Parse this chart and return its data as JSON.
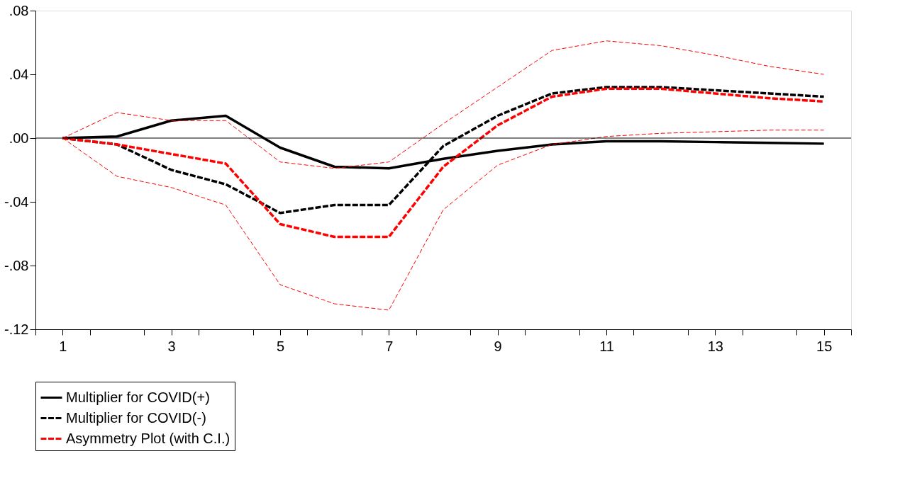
{
  "chart_data": {
    "type": "line",
    "x": [
      1,
      2,
      3,
      4,
      5,
      6,
      7,
      8,
      9,
      10,
      11,
      12,
      13,
      14,
      15
    ],
    "series": [
      {
        "name": "Multiplier for COVID(+)",
        "color": "#000000",
        "line_style": "solid",
        "values": [
          0,
          0.001,
          0.011,
          0.014,
          -0.006,
          -0.018,
          -0.019,
          -0.013,
          -0.008,
          -0.004,
          -0.002,
          -0.002,
          -0.0025,
          -0.003,
          -0.0035
        ]
      },
      {
        "name": "Multiplier for COVID(-)",
        "color": "#000000",
        "line_style": "dashed",
        "values": [
          0,
          -0.004,
          -0.02,
          -0.029,
          -0.047,
          -0.042,
          -0.042,
          -0.005,
          0.014,
          0.028,
          0.032,
          0.032,
          0.03,
          0.028,
          0.026
        ]
      },
      {
        "name": "Asymmetry Plot (with C.I.)",
        "color": "#ff0000",
        "line_style": "dashed",
        "values": [
          0,
          -0.004,
          -0.01,
          -0.016,
          -0.054,
          -0.062,
          -0.062,
          -0.018,
          0.008,
          0.026,
          0.031,
          0.031,
          0.028,
          0.025,
          0.023
        ]
      },
      {
        "color": "#ff0000",
        "line_style": "dashed",
        "values": [
          0,
          -0.024,
          -0.031,
          -0.042,
          -0.092,
          -0.104,
          -0.108,
          -0.045,
          -0.017,
          -0.004,
          0.001,
          0.003,
          0.004,
          0.005,
          0.005
        ]
      },
      {
        "color": "#ff0000",
        "line_style": "dashed",
        "values": [
          0,
          0.016,
          0.011,
          0.011,
          -0.015,
          -0.019,
          -0.015,
          0.009,
          0.032,
          0.055,
          0.061,
          0.058,
          0.052,
          0.045,
          0.04
        ]
      }
    ],
    "xlim": [
      0.5,
      15.5
    ],
    "xticks": [
      {
        "value": 0.5,
        "label": null
      },
      1,
      {
        "value": 1.5,
        "label": null
      },
      {
        "value": 2.5,
        "label": null
      },
      3,
      {
        "value": 3.5,
        "label": null
      },
      {
        "value": 4.5,
        "label": null
      },
      5,
      {
        "value": 5.5,
        "label": null
      },
      {
        "value": 6.5,
        "label": null
      },
      7,
      {
        "value": 7.5,
        "label": null
      },
      {
        "value": 8.5,
        "label": null
      },
      9,
      {
        "value": 9.5,
        "label": null
      },
      {
        "value": 10.5,
        "label": null
      },
      11,
      {
        "value": 11.5,
        "label": null
      },
      {
        "value": 12.5,
        "label": null
      },
      13,
      {
        "value": 13.5,
        "label": null
      },
      {
        "value": 14.5,
        "label": null
      },
      15,
      {
        "value": 15.5,
        "label": null
      }
    ],
    "ylim": [
      -0.12,
      0.08
    ],
    "yticks": [
      {
        "value": -0.12,
        "label": "-.12"
      },
      {
        "value": -0.08,
        "label": "-.08"
      },
      {
        "value": -0.04,
        "label": "-.04"
      },
      {
        "value": 0,
        "label": ".00"
      },
      {
        "value": 0.04,
        "label": ".04"
      },
      {
        "value": 0.08,
        "label": ".08"
      }
    ],
    "ref_lines": [
      {
        "axis": "y",
        "value": 0,
        "color": "#000000",
        "line_style": "solid"
      }
    ],
    "grid": false,
    "legend": "bottom",
    "marker": "none"
  }
}
